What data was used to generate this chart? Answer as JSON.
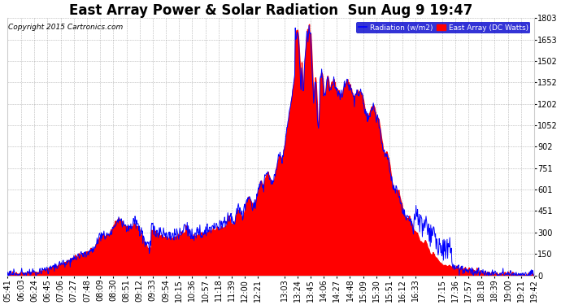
{
  "title": "East Array Power & Solar Radiation  Sun Aug 9 19:47",
  "copyright": "Copyright 2015 Cartronics.com",
  "legend_radiation": "Radiation (w/m2)",
  "legend_east": "East Array (DC Watts)",
  "ymin": 0.0,
  "ymax": 1802.9,
  "yticks": [
    0.0,
    150.2,
    300.5,
    450.7,
    601.0,
    751.2,
    901.5,
    1051.7,
    1201.9,
    1352.2,
    1502.4,
    1652.7,
    1802.9
  ],
  "xtick_labels": [
    "05:41",
    "06:03",
    "06:24",
    "06:45",
    "07:06",
    "07:27",
    "07:48",
    "08:09",
    "08:30",
    "08:51",
    "09:12",
    "09:33",
    "09:54",
    "10:15",
    "10:36",
    "10:57",
    "11:18",
    "11:39",
    "12:00",
    "12:21",
    "13:03",
    "13:24",
    "13:45",
    "14:06",
    "14:27",
    "14:48",
    "15:09",
    "15:30",
    "15:51",
    "16:12",
    "16:33",
    "17:15",
    "17:36",
    "17:57",
    "18:18",
    "18:39",
    "19:00",
    "19:21",
    "19:42"
  ],
  "background_color": "#ffffff",
  "plot_bg": "#ffffff",
  "grid_color": "#888888",
  "title_fontsize": 12,
  "axis_fontsize": 7,
  "radiation_color": "#0000ff",
  "power_fill_color": "#ff0000"
}
